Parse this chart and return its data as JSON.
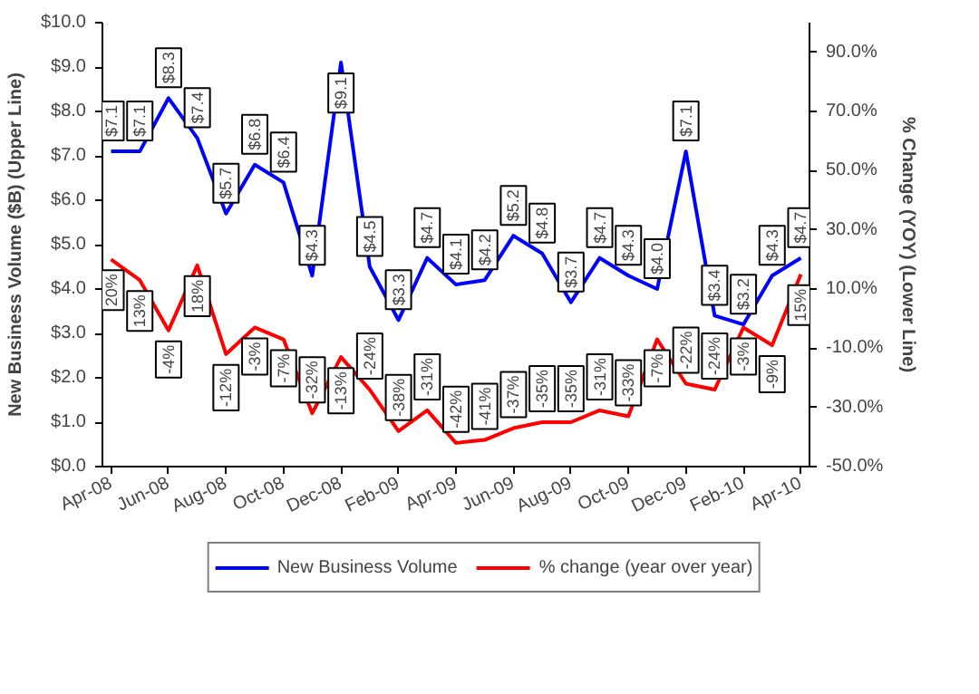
{
  "chart_data": {
    "type": "line",
    "ylabel": "New Business Volume ($B) (Upper Line)",
    "y2label": "% Change (YOY) (Lower Line)",
    "categories": [
      "Apr-08",
      null,
      "Jun-08",
      null,
      "Aug-08",
      null,
      "Oct-08",
      null,
      "Dec-08",
      null,
      "Feb-09",
      null,
      "Apr-09",
      null,
      "Jun-09",
      null,
      "Aug-09",
      null,
      "Oct-09",
      null,
      "Dec-09",
      null,
      "Feb-10",
      null,
      "Apr-10"
    ],
    "series": [
      {
        "name": "New Business Volume",
        "color": "#0000ff",
        "values": [
          7.1,
          7.1,
          8.3,
          7.4,
          5.7,
          6.8,
          6.4,
          4.3,
          9.1,
          4.5,
          3.3,
          4.7,
          4.1,
          4.2,
          5.2,
          4.8,
          3.7,
          4.7,
          4.3,
          4.0,
          7.1,
          3.4,
          3.2,
          4.3,
          4.7
        ],
        "value_labels": [
          "$7.1",
          "$7.1",
          "$8.3",
          "$7.4",
          "$5.7",
          "$6.8",
          "$6.4",
          "$4.3",
          "$9.1",
          "$4.5",
          "$3.3",
          "$4.7",
          "$4.1",
          "$4.2",
          "$5.2",
          "$4.8",
          "$3.7",
          "$4.7",
          "$4.3",
          "$4.0",
          "$7.1",
          "$3.4",
          "$3.2",
          "$4.3",
          "$4.7"
        ]
      },
      {
        "name": "% change (year over year)",
        "color": "#ff0000",
        "axis": "y2",
        "values": [
          20,
          13,
          -4,
          18,
          -12,
          -3,
          -7,
          -32,
          -13,
          -24,
          -38,
          -31,
          -42,
          -41,
          -37,
          -35,
          -35,
          -31,
          -33,
          -7,
          -22,
          -24,
          -3,
          -9,
          15
        ],
        "value_labels": [
          "20%",
          "13%",
          "-4%",
          "18%",
          "-12%",
          "-3%",
          "-7%",
          "-32%",
          "-13%",
          "-24%",
          "-38%",
          "-31%",
          "-42%",
          "-41%",
          "-37%",
          "-35%",
          "-35%",
          "-31%",
          "-33%",
          "-7%",
          "-22%",
          "-24%",
          "-3%",
          "-9%",
          "15%"
        ]
      }
    ],
    "ylim": [
      0,
      10
    ],
    "yticks": [
      {
        "value": 0,
        "label": "$0.0"
      },
      {
        "value": 1,
        "label": "$1.0"
      },
      {
        "value": 2,
        "label": "$2.0"
      },
      {
        "value": 3,
        "label": "$3.0"
      },
      {
        "value": 4,
        "label": "$4.0"
      },
      {
        "value": 5,
        "label": "$5.0"
      },
      {
        "value": 6,
        "label": "$6.0"
      },
      {
        "value": 7,
        "label": "$7.0"
      },
      {
        "value": 8,
        "label": "$8.0"
      },
      {
        "value": 9,
        "label": "$9.0"
      },
      {
        "value": 10,
        "label": "$10.0"
      }
    ],
    "y2lim": [
      -50,
      100
    ],
    "y2ticks": [
      {
        "value": -50,
        "label": "-50.0%"
      },
      {
        "value": -30,
        "label": "-30.0%"
      },
      {
        "value": -10,
        "label": "-10.0%"
      },
      {
        "value": 10,
        "label": "10.0%"
      },
      {
        "value": 30,
        "label": "30.0%"
      },
      {
        "value": 50,
        "label": "50.0%"
      },
      {
        "value": 70,
        "label": "70.0%"
      },
      {
        "value": 90,
        "label": "90.0%"
      }
    ],
    "grid": false,
    "legend": "bottom",
    "marker": "none",
    "line_style": "solid"
  }
}
